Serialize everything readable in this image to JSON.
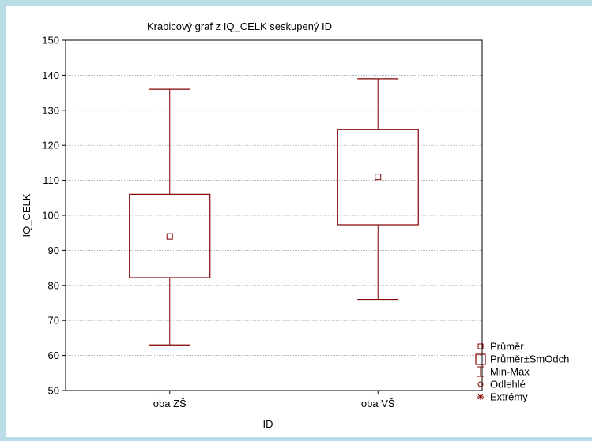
{
  "colors": {
    "mark": "#800000",
    "grid": "#9a9a9a",
    "background": "#b9dde6",
    "panel": "#ffffff"
  },
  "chart_data": {
    "type": "box",
    "title": "Krabicový graf z IQ_CELK seskupený ID",
    "xlabel": "ID",
    "ylabel": "IQ_CELK",
    "ylim": [
      50,
      150
    ],
    "yticks": [
      "50",
      "60",
      "70",
      "80",
      "90",
      "100",
      "110",
      "120",
      "130",
      "140",
      "150"
    ],
    "grid": true,
    "legend_position": "bottom-right",
    "categories": [
      "oba ZŠ",
      "oba VŠ"
    ],
    "boxes": [
      {
        "category": "oba ZŠ",
        "mean": 94,
        "box_low": 82.2,
        "box_high": 106,
        "min": 63,
        "max": 136
      },
      {
        "category": "oba VŠ",
        "mean": 111,
        "box_low": 97.3,
        "box_high": 124.5,
        "min": 76,
        "max": 139
      }
    ],
    "legend": [
      {
        "symbol": "small-square-icon",
        "label": "Průměr"
      },
      {
        "symbol": "box-icon",
        "label": "Průměr±SmOdch"
      },
      {
        "symbol": "whisker-icon",
        "label": "Min-Max"
      },
      {
        "symbol": "circle-icon",
        "label": "Odlehlé"
      },
      {
        "symbol": "asterisk-icon",
        "label": "Extrémy"
      }
    ]
  }
}
